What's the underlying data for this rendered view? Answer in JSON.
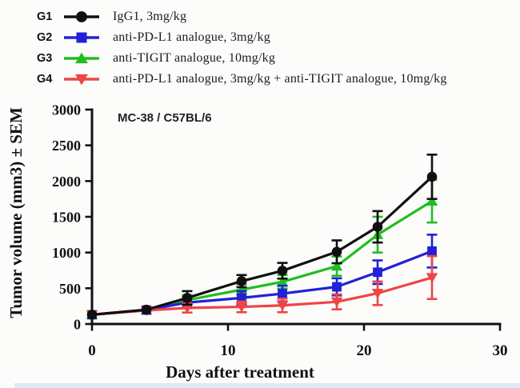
{
  "page": {
    "background": "#fcfcfb",
    "bottom_strip_color": "#dbe9f6"
  },
  "legend": {
    "items": [
      {
        "group": "G1",
        "label": "IgG1, 3mg/kg",
        "color": "#101010",
        "marker": "circle"
      },
      {
        "group": "G2",
        "label": "anti-PD-L1 analogue, 3mg/kg",
        "color": "#2121d6",
        "marker": "square"
      },
      {
        "group": "G3",
        "label": "anti-TIGIT analogue, 10mg/kg",
        "color": "#1fbe1f",
        "marker": "triangle-up"
      },
      {
        "group": "G4",
        "label": "anti-PD-L1 analogue, 3mg/kg + anti-TIGIT analogue, 10mg/kg",
        "color": "#ee4545",
        "marker": "triangle-down"
      }
    ]
  },
  "chart_data": {
    "type": "line",
    "title_annotation": "MC-38 / C57BL/6",
    "xlabel": "Days after treatment",
    "ylabel": "Tumor volume (mm3) ± SEM",
    "error_bars": "± SEM",
    "x": [
      0,
      4,
      7,
      11,
      14,
      18,
      21,
      25
    ],
    "xlim": [
      0,
      30
    ],
    "xticks": [
      0,
      10,
      20,
      30
    ],
    "ylim": [
      0,
      3000
    ],
    "yticks": [
      0,
      500,
      1000,
      1500,
      2000,
      2500,
      3000
    ],
    "grid": false,
    "legend_position": "top-left-outside",
    "series": [
      {
        "name": "G1",
        "label": "IgG1, 3mg/kg",
        "color": "#101010",
        "marker": "circle",
        "values": [
          130,
          200,
          365,
          600,
          745,
          1010,
          1360,
          2060
        ],
        "sem": [
          20,
          30,
          95,
          85,
          110,
          160,
          220,
          310
        ]
      },
      {
        "name": "G2",
        "label": "anti-PD-L1 analogue, 3mg/kg",
        "color": "#2121d6",
        "marker": "square",
        "values": [
          130,
          195,
          300,
          365,
          425,
          520,
          725,
          1020
        ],
        "sem": [
          20,
          30,
          75,
          95,
          110,
          120,
          165,
          230
        ]
      },
      {
        "name": "G3",
        "label": "anti-TIGIT analogue, 10mg/kg",
        "color": "#1fbe1f",
        "marker": "triangle-up",
        "values": [
          130,
          195,
          335,
          480,
          590,
          810,
          1250,
          1720
        ],
        "sem": [
          20,
          30,
          70,
          75,
          95,
          135,
          250,
          300
        ]
      },
      {
        "name": "G4",
        "label": "anti-PD-L1 analogue, 3mg/kg + anti-TIGIT analogue, 10mg/kg",
        "color": "#ee4545",
        "marker": "triangle-down",
        "values": [
          130,
          190,
          225,
          240,
          260,
          310,
          430,
          650
        ],
        "sem": [
          20,
          30,
          65,
          75,
          95,
          105,
          165,
          300
        ]
      }
    ]
  }
}
